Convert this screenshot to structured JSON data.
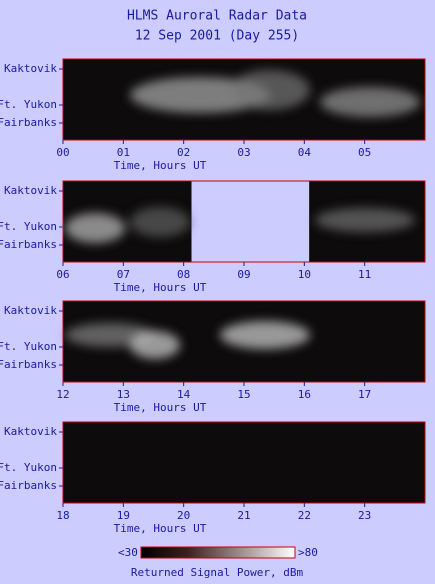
{
  "title": "HLMS Auroral Radar Data",
  "subtitle": "12 Sep 2001 (Day 255)",
  "chart_data": [
    {
      "type": "heatmap",
      "xlabel": "Time, Hours UT",
      "ylabels": [
        "Kaktovik",
        "Ft. Yukon",
        "Fairbanks"
      ],
      "xlim": [
        0,
        6
      ],
      "xticks": [
        {
          "value": 0,
          "label": "00"
        },
        {
          "value": 1,
          "label": "01"
        },
        {
          "value": 2,
          "label": "02"
        },
        {
          "value": 3,
          "label": "03"
        },
        {
          "value": 4,
          "label": "04"
        },
        {
          "value": 5,
          "label": "05"
        }
      ]
    },
    {
      "type": "heatmap",
      "xlabel": "Time, Hours UT",
      "ylabels": [
        "Kaktovik",
        "Ft. Yukon",
        "Fairbanks"
      ],
      "xlim": [
        6,
        12
      ],
      "xticks": [
        {
          "value": 6,
          "label": "06"
        },
        {
          "value": 7,
          "label": "07"
        },
        {
          "value": 8,
          "label": "08"
        },
        {
          "value": 9,
          "label": "09"
        },
        10,
        11
      ],
      "no_data": [
        8.13,
        10.08
      ]
    },
    {
      "type": "heatmap",
      "xlabel": "Time, Hours UT",
      "ylabels": [
        "Kaktovik",
        "Ft. Yukon",
        "Fairbanks"
      ],
      "xlim": [
        12,
        18
      ],
      "xticks": [
        12,
        13,
        14,
        15,
        16,
        17
      ]
    },
    {
      "type": "heatmap",
      "xlabel": "Time, Hours UT",
      "ylabels": [
        "Kaktovik",
        "Ft. Yukon",
        "Fairbanks"
      ],
      "xlim": [
        18,
        24
      ],
      "xticks": [
        18,
        19,
        20,
        21,
        22,
        23
      ]
    }
  ],
  "colorbar": {
    "label": "Returned Signal Power, dBm",
    "low": {
      "value": 30,
      "label": "<30"
    },
    "high": {
      "value": 80,
      "label": ">80"
    }
  }
}
